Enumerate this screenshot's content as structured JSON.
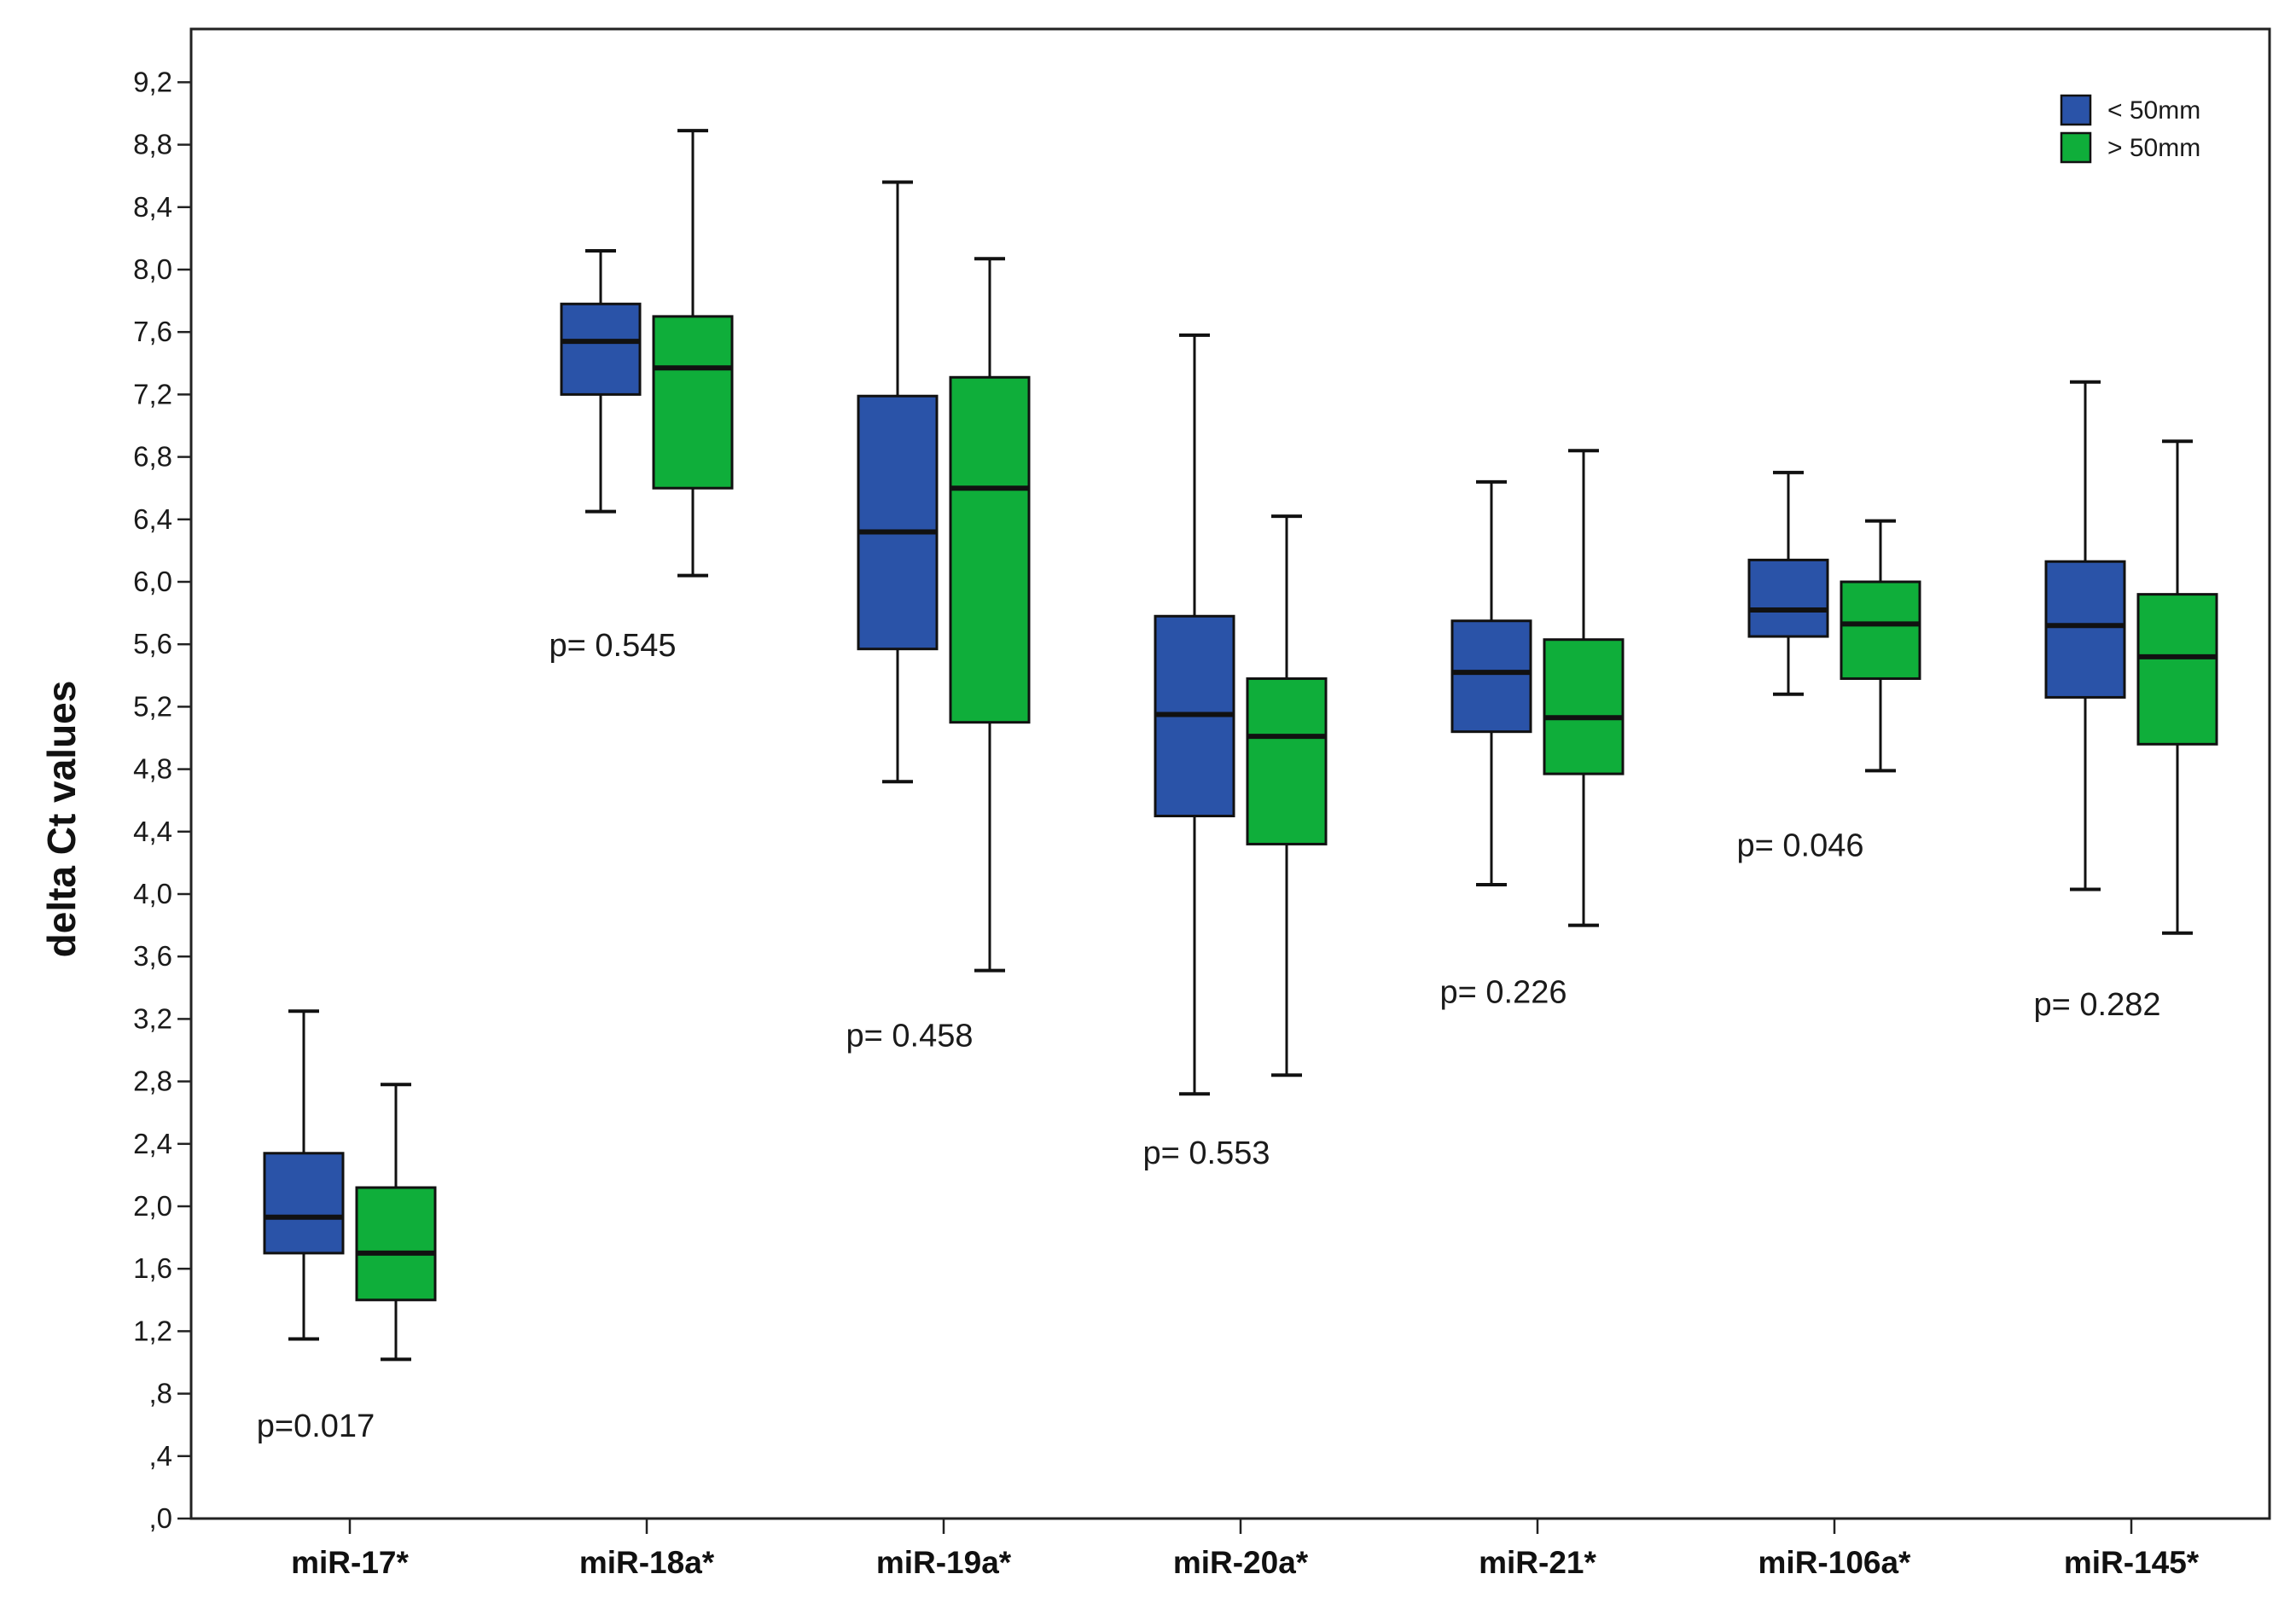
{
  "chart_data": {
    "type": "boxplot",
    "ylabel": "delta Ct values",
    "xlabel": "",
    "ylim": [
      0,
      9.4
    ],
    "yticks": [
      {
        "value": 0.0,
        "label": ",0"
      },
      {
        "value": 0.4,
        "label": ",4"
      },
      {
        "value": 0.8,
        "label": ",8"
      },
      {
        "value": 1.2,
        "label": "1,2"
      },
      {
        "value": 1.6,
        "label": "1,6"
      },
      {
        "value": 2.0,
        "label": "2,0"
      },
      {
        "value": 2.4,
        "label": "2,4"
      },
      {
        "value": 2.8,
        "label": "2,8"
      },
      {
        "value": 3.2,
        "label": "3,2"
      },
      {
        "value": 3.6,
        "label": "3,6"
      },
      {
        "value": 4.0,
        "label": "4,0"
      },
      {
        "value": 4.4,
        "label": "4,4"
      },
      {
        "value": 4.8,
        "label": "4,8"
      },
      {
        "value": 5.2,
        "label": "5,2"
      },
      {
        "value": 5.6,
        "label": "5,6"
      },
      {
        "value": 6.0,
        "label": "6,0"
      },
      {
        "value": 6.4,
        "label": "6,4"
      },
      {
        "value": 6.8,
        "label": "6,8"
      },
      {
        "value": 7.2,
        "label": "7,2"
      },
      {
        "value": 7.6,
        "label": "7,6"
      },
      {
        "value": 8.0,
        "label": "8,0"
      },
      {
        "value": 8.4,
        "label": "8,4"
      },
      {
        "value": 8.8,
        "label": "8,8"
      },
      {
        "value": 9.2,
        "label": "9,2"
      }
    ],
    "grid": false,
    "legend_position": "top-right",
    "categories": [
      "miR-17*",
      "miR-18a*",
      "miR-19a*",
      "miR-20a*",
      "miR-21*",
      "miR-106a*",
      "miR-145*"
    ],
    "series": [
      {
        "name": "< 50mm",
        "color": "#2a53a8",
        "boxes": [
          {
            "min": 1.15,
            "q1": 1.7,
            "median": 1.93,
            "q3": 2.34,
            "max": 3.25
          },
          {
            "min": 6.45,
            "q1": 7.2,
            "median": 7.54,
            "q3": 7.78,
            "max": 8.12
          },
          {
            "min": 4.72,
            "q1": 5.57,
            "median": 6.32,
            "q3": 7.19,
            "max": 8.56
          },
          {
            "min": 2.72,
            "q1": 4.5,
            "median": 5.15,
            "q3": 5.78,
            "max": 7.58
          },
          {
            "min": 4.06,
            "q1": 5.04,
            "median": 5.42,
            "q3": 5.75,
            "max": 6.64
          },
          {
            "min": 5.28,
            "q1": 5.65,
            "median": 5.82,
            "q3": 6.14,
            "max": 6.7
          },
          {
            "min": 4.03,
            "q1": 5.26,
            "median": 5.72,
            "q3": 6.13,
            "max": 7.28
          }
        ]
      },
      {
        "name": "> 50mm",
        "color": "#0fae3a",
        "boxes": [
          {
            "min": 1.02,
            "q1": 1.4,
            "median": 1.7,
            "q3": 2.12,
            "max": 2.78
          },
          {
            "min": 6.04,
            "q1": 6.6,
            "median": 7.37,
            "q3": 7.7,
            "max": 8.89
          },
          {
            "min": 3.51,
            "q1": 5.1,
            "median": 6.6,
            "q3": 7.31,
            "max": 8.07
          },
          {
            "min": 2.84,
            "q1": 4.32,
            "median": 5.01,
            "q3": 5.38,
            "max": 6.42
          },
          {
            "min": 3.8,
            "q1": 4.77,
            "median": 5.13,
            "q3": 5.63,
            "max": 6.84
          },
          {
            "min": 4.79,
            "q1": 5.38,
            "median": 5.73,
            "q3": 6.0,
            "max": 6.39
          },
          {
            "min": 3.75,
            "q1": 4.96,
            "median": 5.52,
            "q3": 5.92,
            "max": 6.9
          }
        ]
      }
    ],
    "annotations": [
      {
        "text": "p=0.017",
        "x": "miR-17*",
        "y": 0.6
      },
      {
        "text": "p= 0.545",
        "x": "miR-18a*",
        "y": 5.6
      },
      {
        "text": "p= 0.458",
        "x": "miR-19a*",
        "y": 3.1
      },
      {
        "text": "p= 0.553",
        "x": "miR-20a*",
        "y": 2.35
      },
      {
        "text": "p= 0.226",
        "x": "miR-21*",
        "y": 3.38
      },
      {
        "text": "p= 0.046",
        "x": "miR-106a*",
        "y": 4.32
      },
      {
        "text": "p= 0.282",
        "x": "miR-145*",
        "y": 3.3
      }
    ]
  }
}
